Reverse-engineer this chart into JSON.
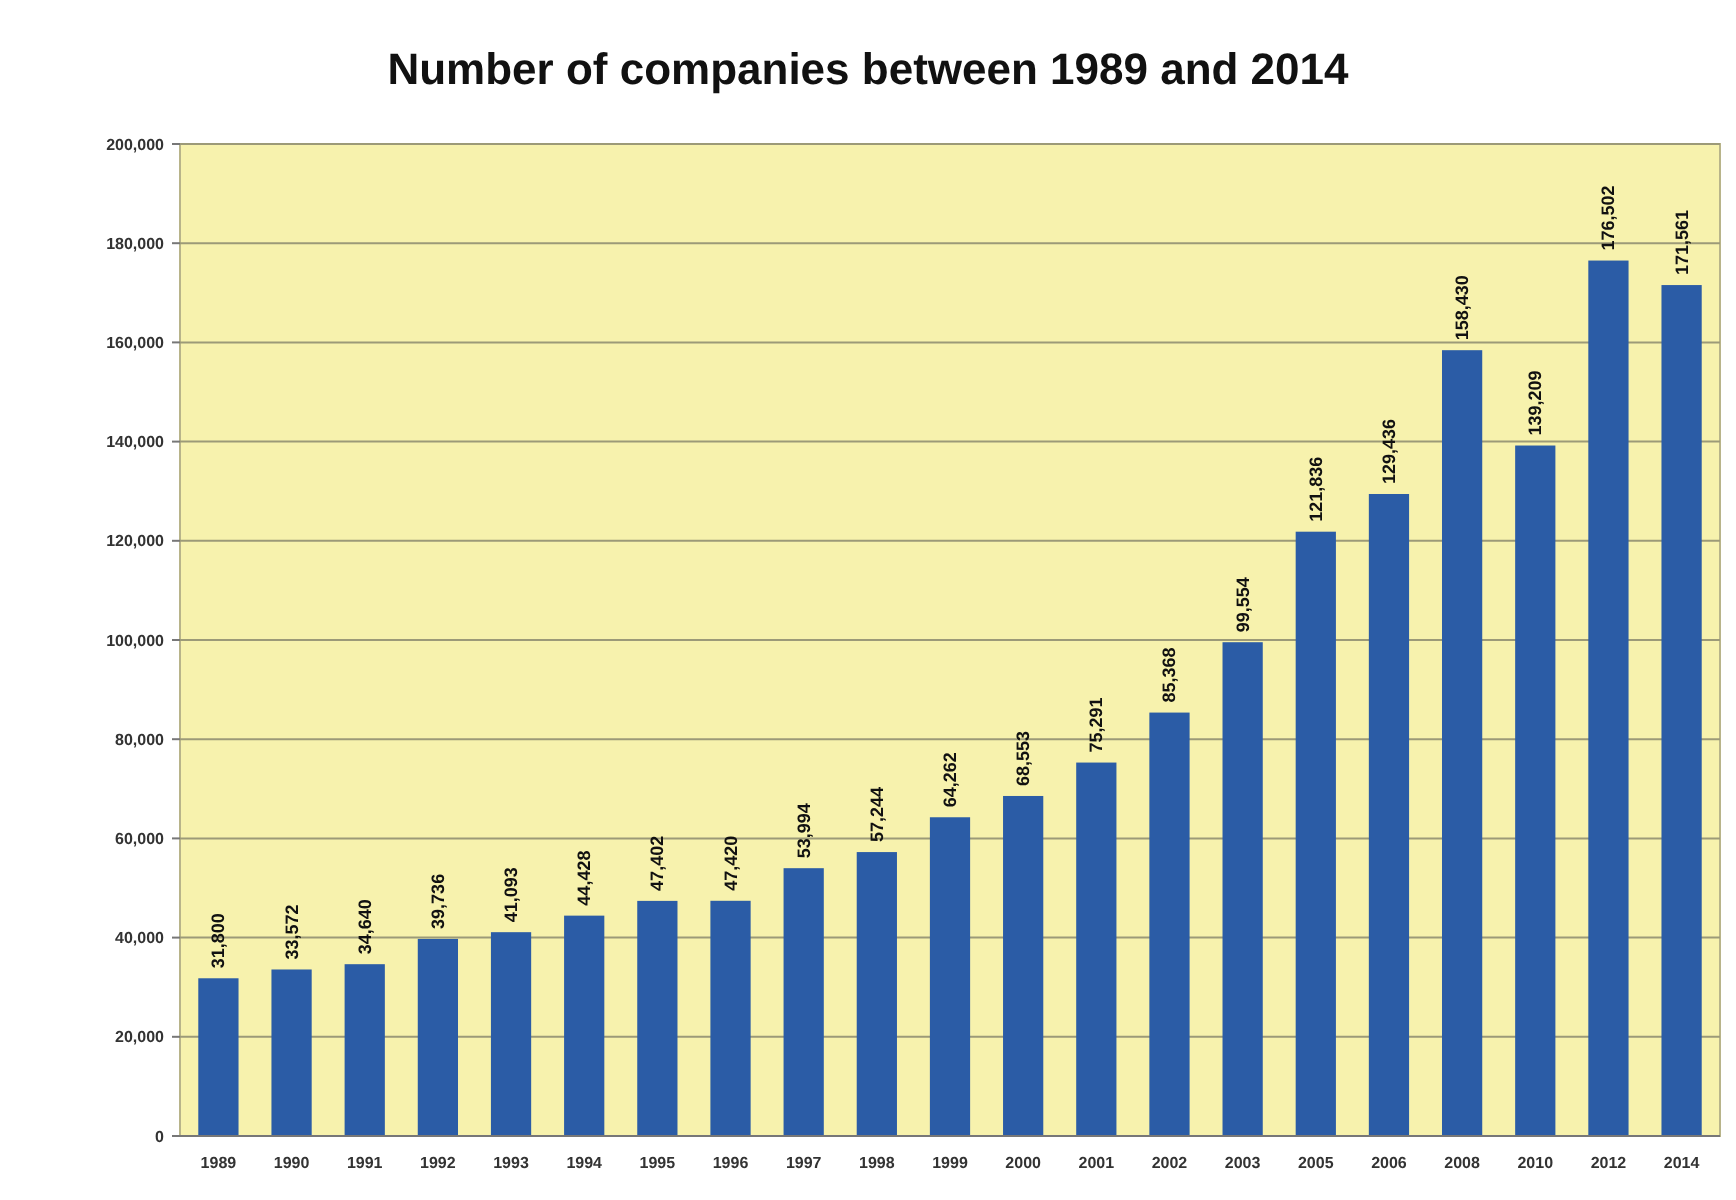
{
  "chart_data": {
    "type": "bar",
    "title": "Number of companies between 1989 and 2014",
    "categories": [
      "1989",
      "1990",
      "1991",
      "1992",
      "1993",
      "1994",
      "1995",
      "1996",
      "1997",
      "1998",
      "1999",
      "2000",
      "2001",
      "2002",
      "2003",
      "2005",
      "2006",
      "2008",
      "2010",
      "2012",
      "2014"
    ],
    "values": [
      31800,
      33572,
      34640,
      39736,
      41093,
      44428,
      47402,
      47420,
      53994,
      57244,
      64262,
      68553,
      75291,
      85368,
      99554,
      121836,
      129436,
      158430,
      139209,
      176502,
      171561
    ],
    "value_labels": [
      "31,800",
      "33,572",
      "34,640",
      "39,736",
      "41,093",
      "44,428",
      "47,402",
      "47,420",
      "53,994",
      "57,244",
      "64,262",
      "68,553",
      "75,291",
      "85,368",
      "99,554",
      "121,836",
      "129,436",
      "158,430",
      "139,209",
      "176,502",
      "171,561"
    ],
    "color": "#2b5ca6",
    "ylim": [
      0,
      200000
    ],
    "yticks": [
      0,
      {
        "value": 20000,
        "label": "20,000"
      },
      {
        "value": 40000,
        "label": "40,000"
      },
      {
        "value": 60000,
        "label": "60,000"
      },
      {
        "value": 80000,
        "label": "80,000"
      },
      {
        "value": 100000,
        "label": "100,000"
      },
      {
        "value": 120000,
        "label": "120,000"
      },
      {
        "value": 140000,
        "label": "140,000"
      },
      {
        "value": 160000,
        "label": "160,000"
      },
      {
        "value": 180000,
        "label": "180,000"
      },
      {
        "value": 200000,
        "label": "200,000"
      }
    ],
    "grid": "y"
  }
}
